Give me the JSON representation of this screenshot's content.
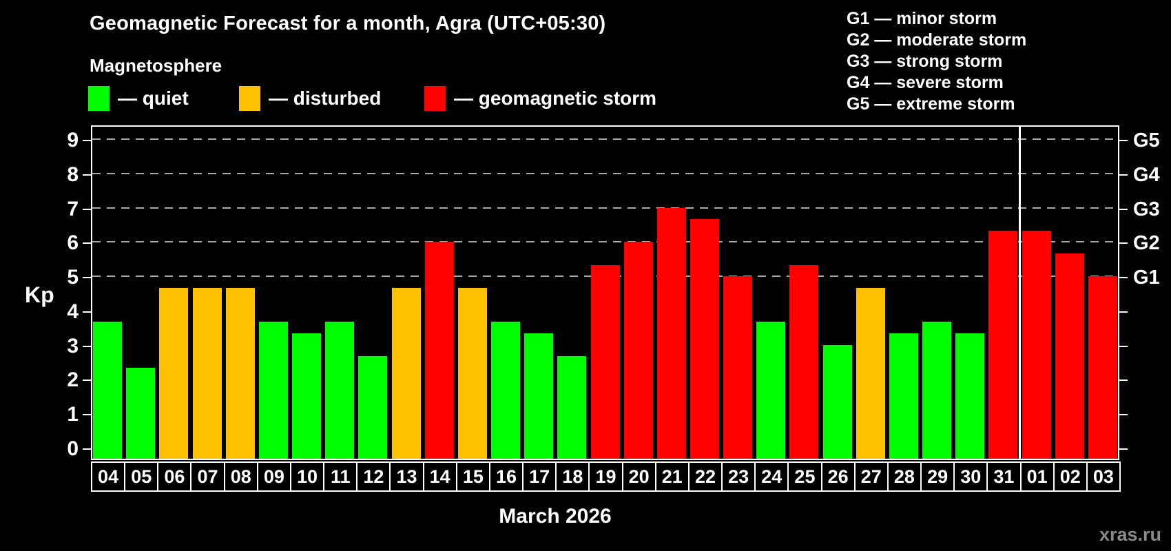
{
  "header": {
    "title": "Geomagnetic Forecast for a month, Agra (UTC+05:30)",
    "subtitle": "Magnetosphere"
  },
  "legend": {
    "items": [
      {
        "status": "quiet",
        "label": "— quiet"
      },
      {
        "status": "disturbed",
        "label": "— disturbed"
      },
      {
        "status": "storm",
        "label": "— geomagnetic storm"
      }
    ]
  },
  "g_legend": {
    "lines": [
      "G1 — minor storm",
      "G2 — moderate storm",
      "G3 — strong storm",
      "G4 — severe storm",
      "G5 — extreme storm"
    ]
  },
  "colors": {
    "quiet": "#00ff00",
    "disturbed": "#ffc000",
    "storm": "#ff0000",
    "background": "#000000",
    "text": "#ffffff",
    "grid": "#aaaaaa",
    "watermark": "#8a8a8a"
  },
  "chart_data": {
    "type": "bar",
    "title": "Geomagnetic Forecast for a month, Agra (UTC+05:30)",
    "xlabel": "March 2026",
    "ylabel": "Kp",
    "ylim": [
      0,
      9.4
    ],
    "grid": "horizontal dashed lines at Kp 5,6,7,8,9 only",
    "legend_position": "top-left",
    "left_ticks": [
      0,
      1,
      2,
      3,
      4,
      5,
      6,
      7,
      8,
      9
    ],
    "right_axis_labels": [
      {
        "kp": 5,
        "label": "G1"
      },
      {
        "kp": 6,
        "label": "G2"
      },
      {
        "kp": 7,
        "label": "G3"
      },
      {
        "kp": 8,
        "label": "G4"
      },
      {
        "kp": 9,
        "label": "G5"
      }
    ],
    "month_separator_before_category": "01",
    "categories": [
      "04",
      "05",
      "06",
      "07",
      "08",
      "09",
      "10",
      "11",
      "12",
      "13",
      "14",
      "15",
      "16",
      "17",
      "18",
      "19",
      "20",
      "21",
      "22",
      "23",
      "24",
      "25",
      "26",
      "27",
      "28",
      "29",
      "30",
      "31",
      "01",
      "02",
      "03"
    ],
    "values": [
      3.67,
      2.33,
      4.67,
      4.67,
      4.67,
      3.67,
      3.33,
      3.67,
      2.67,
      4.67,
      6.0,
      4.67,
      3.67,
      3.33,
      2.67,
      5.33,
      6.0,
      7.0,
      6.67,
      5.0,
      3.67,
      5.33,
      3.0,
      4.67,
      3.33,
      3.67,
      3.33,
      6.33,
      6.33,
      5.67,
      5.0
    ],
    "statuses": [
      "quiet",
      "quiet",
      "disturbed",
      "disturbed",
      "disturbed",
      "quiet",
      "quiet",
      "quiet",
      "quiet",
      "disturbed",
      "storm",
      "disturbed",
      "quiet",
      "quiet",
      "quiet",
      "storm",
      "storm",
      "storm",
      "storm",
      "storm",
      "quiet",
      "storm",
      "quiet",
      "disturbed",
      "quiet",
      "quiet",
      "quiet",
      "storm",
      "storm",
      "storm",
      "storm"
    ]
  },
  "footer": {
    "watermark": "xras.ru"
  }
}
